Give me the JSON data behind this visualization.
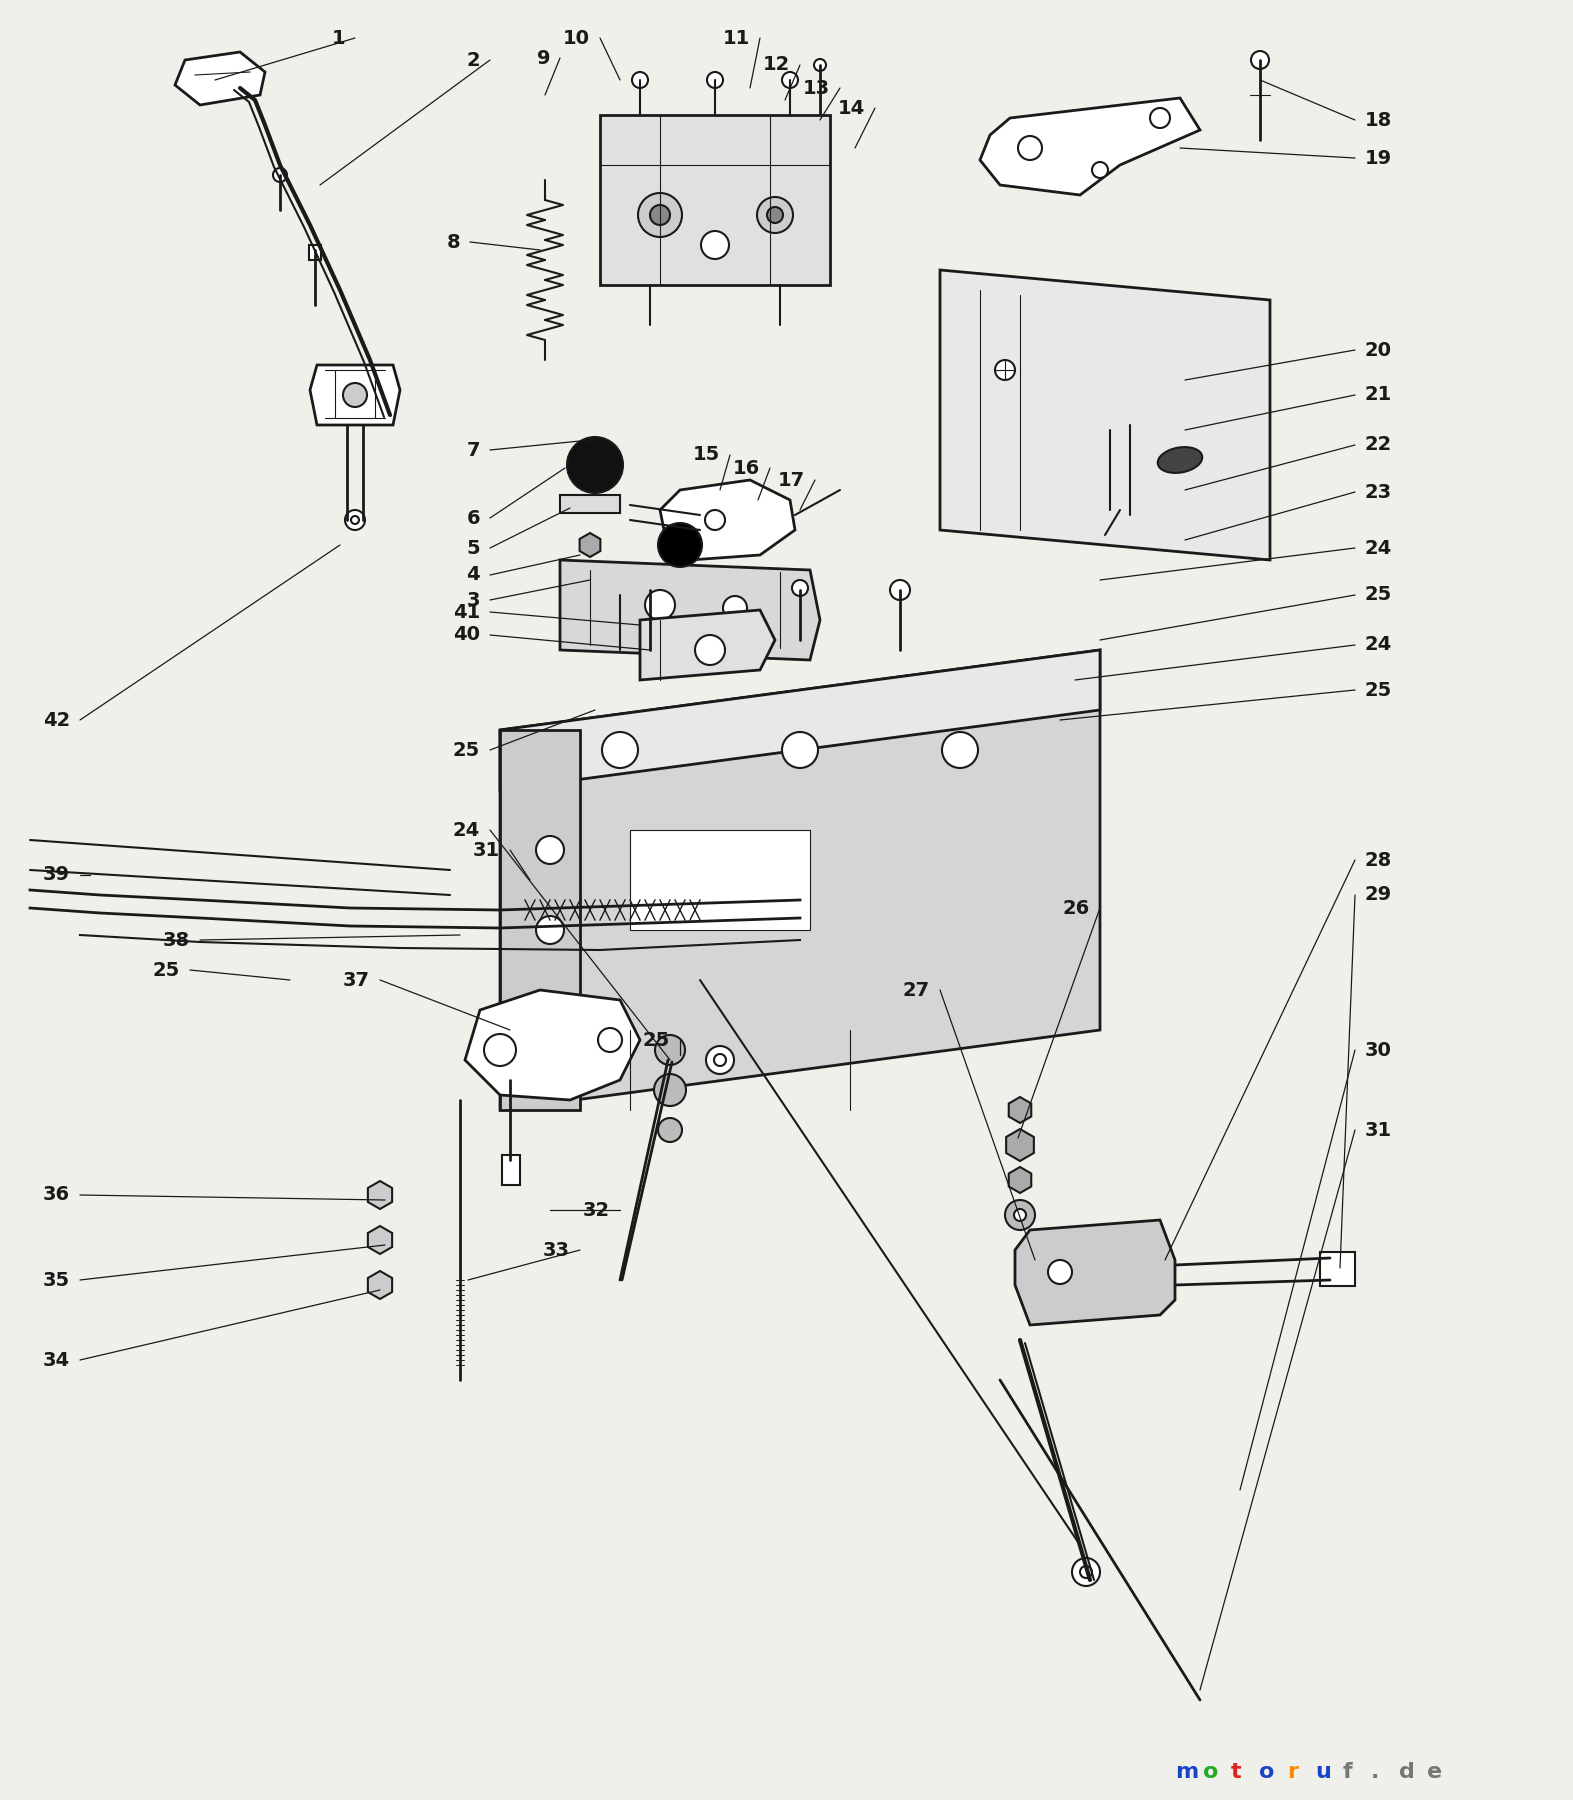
{
  "bg_color": "#f0f0eb",
  "line_color": "#1a1a1a",
  "fig_width": 15.73,
  "fig_height": 18.0,
  "dpi": 100,
  "watermark": {
    "letters": [
      "m",
      "o",
      "t",
      "o",
      "r",
      "u",
      "f",
      ".",
      "d",
      "e"
    ],
    "colors": [
      "#1a44c8",
      "#22aa22",
      "#dd2222",
      "#1a44c8",
      "#ff8800",
      "#1a44c8",
      "#777777",
      "#777777",
      "#777777",
      "#777777"
    ]
  }
}
